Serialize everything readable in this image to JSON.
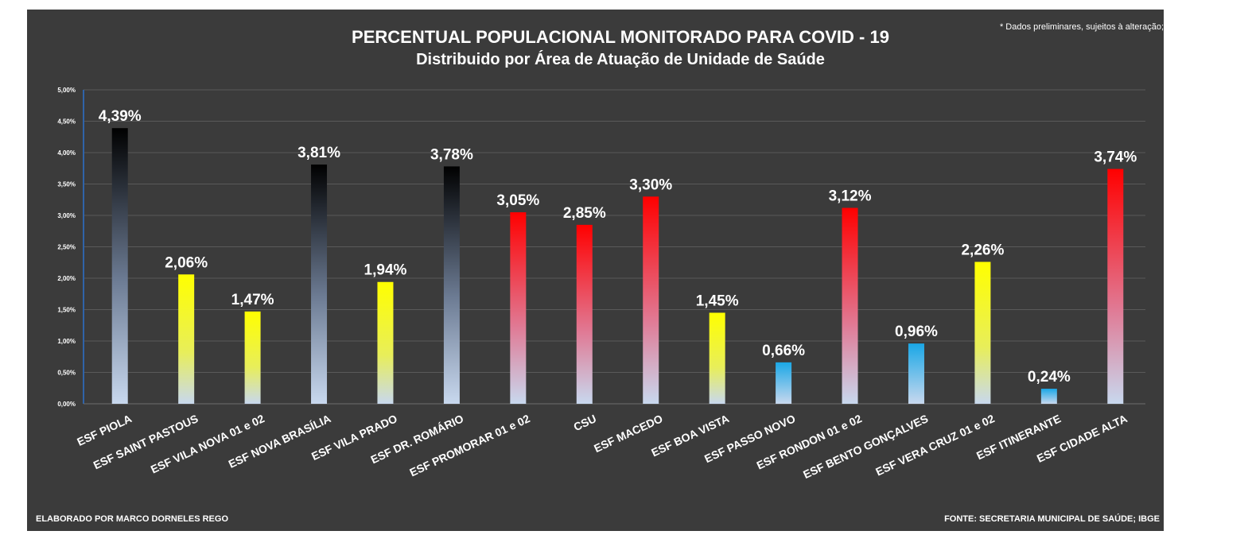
{
  "header": {
    "title": "PERCENTUAL POPULACIONAL MONITORADO PARA COVID - 19",
    "subtitle": "Distribuido por Área de Atuação de Unidade de Saúde",
    "note": "* Dados preliminares, sujeitos à alteração;"
  },
  "footer": {
    "left": "ELABORADO POR MARCO DORNELES REGO",
    "right": "FONTE: SECRETARIA MUNICIPAL DE SAÚDE; IBGE"
  },
  "colors": {
    "background": "#3b3b3b",
    "black": "#000000",
    "yellow": "#ffff00",
    "red": "#ff0000",
    "blue": "#1aa7e6",
    "base": "#c8d8ee"
  },
  "chart_data": {
    "type": "bar",
    "title": "PERCENTUAL POPULACIONAL MONITORADO PARA COVID - 19",
    "subtitle": "Distribuido por Área de Atuação de Unidade de Saúde",
    "ylim": [
      0,
      5
    ],
    "yticks": [
      "0,00%",
      "0,50%",
      "1,00%",
      "1,50%",
      "2,00%",
      "2,50%",
      "3,00%",
      "3,50%",
      "4,00%",
      "4,50%",
      "5,00%"
    ],
    "grid": true,
    "categories": [
      "ESF PIOLA",
      "ESF SAINT PASTOUS",
      "ESF VILA NOVA 01 e 02",
      "ESF NOVA BRASÍLIA",
      "ESF VILA PRADO",
      "ESF DR. ROMÁRIO",
      "ESF PROMORAR 01 e 02",
      "CSU",
      "ESF MACEDO",
      "ESF BOA VISTA",
      "ESF PASSO NOVO",
      "ESF RONDON 01 e 02",
      "ESF BENTO GONÇALVES",
      "ESF VERA CRUZ 01 e 02",
      "ESF ITINERANTE",
      "ESF CIDADE ALTA"
    ],
    "values": [
      4.39,
      2.06,
      1.47,
      3.81,
      1.94,
      3.78,
      3.05,
      2.85,
      3.3,
      1.45,
      0.66,
      3.12,
      0.96,
      2.26,
      0.24,
      3.74
    ],
    "labels": [
      "4,39%",
      "2,06%",
      "1,47%",
      "3,81%",
      "1,94%",
      "3,78%",
      "3,05%",
      "2,85%",
      "3,30%",
      "1,45%",
      "0,66%",
      "3,12%",
      "0,96%",
      "2,26%",
      "0,24%",
      "3,74%"
    ],
    "bar_colors": [
      "black",
      "yellow",
      "yellow",
      "black",
      "yellow",
      "black",
      "red",
      "red",
      "red",
      "yellow",
      "blue",
      "red",
      "blue",
      "yellow",
      "blue",
      "red"
    ]
  }
}
